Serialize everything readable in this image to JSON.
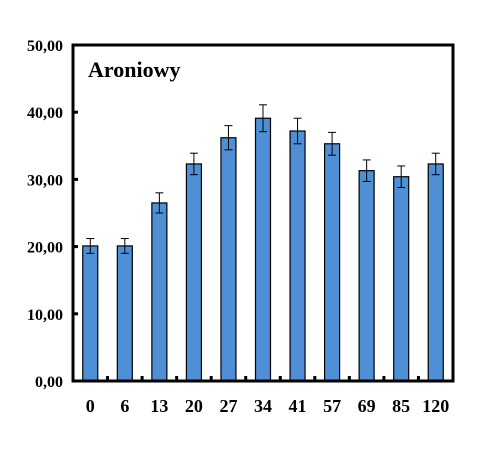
{
  "chart_data": {
    "type": "bar",
    "title": "Aroniowy",
    "xlabel": "",
    "ylabel": "",
    "categories": [
      "0",
      "6",
      "13",
      "20",
      "27",
      "34",
      "41",
      "57",
      "69",
      "85",
      "120"
    ],
    "values": [
      20.1,
      20.1,
      26.5,
      32.3,
      36.2,
      39.1,
      37.2,
      35.3,
      31.3,
      30.4,
      32.3
    ],
    "errors": [
      1.1,
      1.1,
      1.5,
      1.6,
      1.8,
      2.0,
      1.9,
      1.7,
      1.6,
      1.6,
      1.6
    ],
    "ylim": [
      0,
      50
    ],
    "yticks": [
      "0,00",
      "10,00",
      "20,00",
      "30,00",
      "40,00",
      "50,00"
    ],
    "ytick_values": [
      0,
      10,
      20,
      30,
      40,
      50
    ],
    "grid": false,
    "legend": "none",
    "colors": {
      "bar_fill": "#4f8fd6",
      "bar_edge": "#000000",
      "axis": "#000000",
      "background": "#ffffff"
    }
  }
}
